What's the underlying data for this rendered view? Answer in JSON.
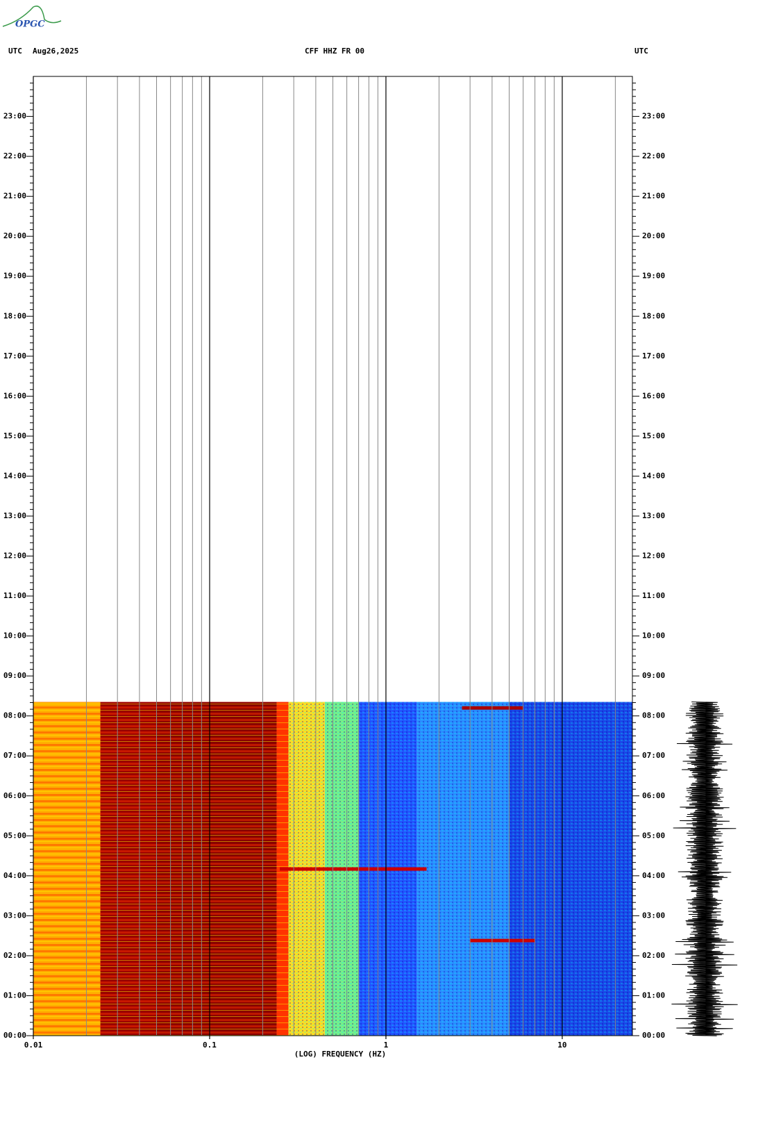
{
  "logo": "OPGC",
  "chart_data": {
    "type": "spectrogram",
    "title": "CFF HHZ FR 00",
    "left_header": "UTC",
    "date": "Aug26,2025",
    "right_header": "UTC",
    "xlabel": "(LOG) FREQUENCY (HZ)",
    "xscale": "log",
    "xlim": [
      0.01,
      25
    ],
    "xticks": [
      {
        "value": 0.01,
        "label": "0.01"
      },
      {
        "value": 0.1,
        "label": "0.1"
      },
      1,
      10
    ],
    "xminor": [
      0.02,
      0.03,
      0.04,
      0.05,
      0.06,
      0.07,
      0.08,
      0.09,
      0.2,
      0.3,
      0.4,
      0.5,
      0.6,
      0.7,
      0.8,
      0.9,
      2,
      3,
      4,
      5,
      6,
      7,
      8,
      9,
      20
    ],
    "ylim": [
      0,
      24
    ],
    "yticks": [
      {
        "value": 0,
        "label": "00:00"
      },
      {
        "value": 1,
        "label": "01:00"
      },
      {
        "value": 2,
        "label": "02:00"
      },
      {
        "value": 3,
        "label": "03:00"
      },
      {
        "value": 4,
        "label": "04:00"
      },
      {
        "value": 5,
        "label": "05:00"
      },
      {
        "value": 6,
        "label": "06:00"
      },
      {
        "value": 7,
        "label": "07:00"
      },
      {
        "value": 8,
        "label": "08:00"
      },
      {
        "value": 9,
        "label": "09:00"
      },
      {
        "value": 10,
        "label": "10:00"
      },
      {
        "value": 11,
        "label": "11:00"
      },
      {
        "value": 12,
        "label": "12:00"
      },
      {
        "value": 13,
        "label": "13:00"
      },
      {
        "value": 14,
        "label": "14:00"
      },
      {
        "value": 15,
        "label": "15:00"
      },
      {
        "value": 16,
        "label": "16:00"
      },
      {
        "value": 17,
        "label": "17:00"
      },
      {
        "value": 18,
        "label": "18:00"
      },
      {
        "value": 19,
        "label": "19:00"
      },
      {
        "value": 20,
        "label": "20:00"
      },
      {
        "value": 21,
        "label": "21:00"
      },
      {
        "value": 22,
        "label": "22:00"
      },
      {
        "value": 23,
        "label": "23:00"
      }
    ],
    "data_end": 8.35,
    "bands": [
      {
        "from": 0.01,
        "to": 0.024,
        "color": "#ffb000"
      },
      {
        "from": 0.024,
        "to": 0.05,
        "color": "#990000"
      },
      {
        "from": 0.05,
        "to": 0.07,
        "color": "#8b0000"
      },
      {
        "from": 0.07,
        "to": 0.24,
        "color": "#880000"
      },
      {
        "from": 0.24,
        "to": 0.28,
        "color": "#ff3300"
      },
      {
        "from": 0.28,
        "to": 0.45,
        "color": "#ffdd22"
      },
      {
        "from": 0.45,
        "to": 0.7,
        "color": "#77ee88"
      },
      {
        "from": 0.7,
        "to": 1.5,
        "color": "#2255ff"
      },
      {
        "from": 1.5,
        "to": 5,
        "color": "#2b8cff"
      },
      {
        "from": 5,
        "to": 25,
        "color": "#1a47e8"
      }
    ],
    "events": [
      {
        "time": 4.17,
        "from": 0.25,
        "to": 1.7,
        "color": "#cc0000"
      },
      {
        "time": 2.38,
        "from": 3,
        "to": 7,
        "color": "#cc0000"
      },
      {
        "time": 8.2,
        "from": 2.7,
        "to": 6,
        "color": "#aa0000"
      }
    ]
  }
}
